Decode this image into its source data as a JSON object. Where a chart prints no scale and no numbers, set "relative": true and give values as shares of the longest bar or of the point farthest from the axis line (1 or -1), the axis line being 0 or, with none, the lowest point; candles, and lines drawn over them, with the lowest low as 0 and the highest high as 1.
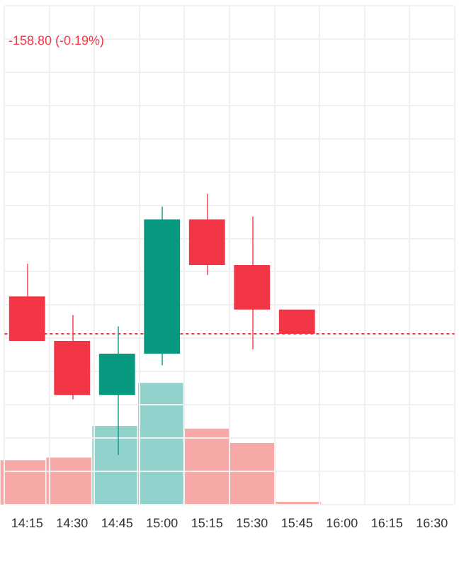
{
  "chart_data": [
    {
      "type": "candlestick",
      "relative": true,
      "grid": true,
      "legend": false,
      "annotations": [
        "-158.80 (-0.19%)"
      ],
      "categories": [
        "14:15",
        "14:30",
        "14:45",
        "15:00",
        "15:15",
        "15:30",
        "15:45",
        "16:00",
        "16:15",
        "16:30"
      ],
      "ref_lines": [
        {
          "axis": "y",
          "value": 0.464,
          "color": "#f23645",
          "line_style": "dotted"
        }
      ],
      "ohlc": [
        [
          0.607,
          0.732,
          0.437,
          0.437
        ],
        [
          0.437,
          0.536,
          0.213,
          0.23
        ],
        [
          0.23,
          0.492,
          0,
          0.388
        ],
        [
          0.388,
          0.951,
          0.344,
          0.902
        ],
        [
          0.902,
          1,
          0.689,
          0.727
        ],
        [
          0.727,
          0.913,
          0.404,
          0.557
        ],
        [
          0.557,
          0.557,
          0.464,
          0.464
        ],
        null,
        null,
        null
      ],
      "colors": [
        "#f23645",
        "#f23645",
        "#089981",
        "#089981",
        "#f23645",
        "#f23645",
        "#f23645",
        null,
        null,
        null
      ]
    },
    {
      "type": "bar",
      "relative": true,
      "categories": [
        null,
        null,
        null,
        null,
        null,
        null,
        null,
        null,
        null,
        null
      ],
      "values": [
        0.365,
        0.388,
        0.647,
        1,
        0.624,
        0.506,
        0.024,
        null,
        null,
        null
      ],
      "colors": [
        "#f7a9a7",
        "#f7a9a7",
        "#92d2cc",
        "#92d2cc",
        "#f7a9a7",
        "#f7a9a7",
        "#f7a9a7",
        null,
        null,
        null
      ]
    }
  ]
}
